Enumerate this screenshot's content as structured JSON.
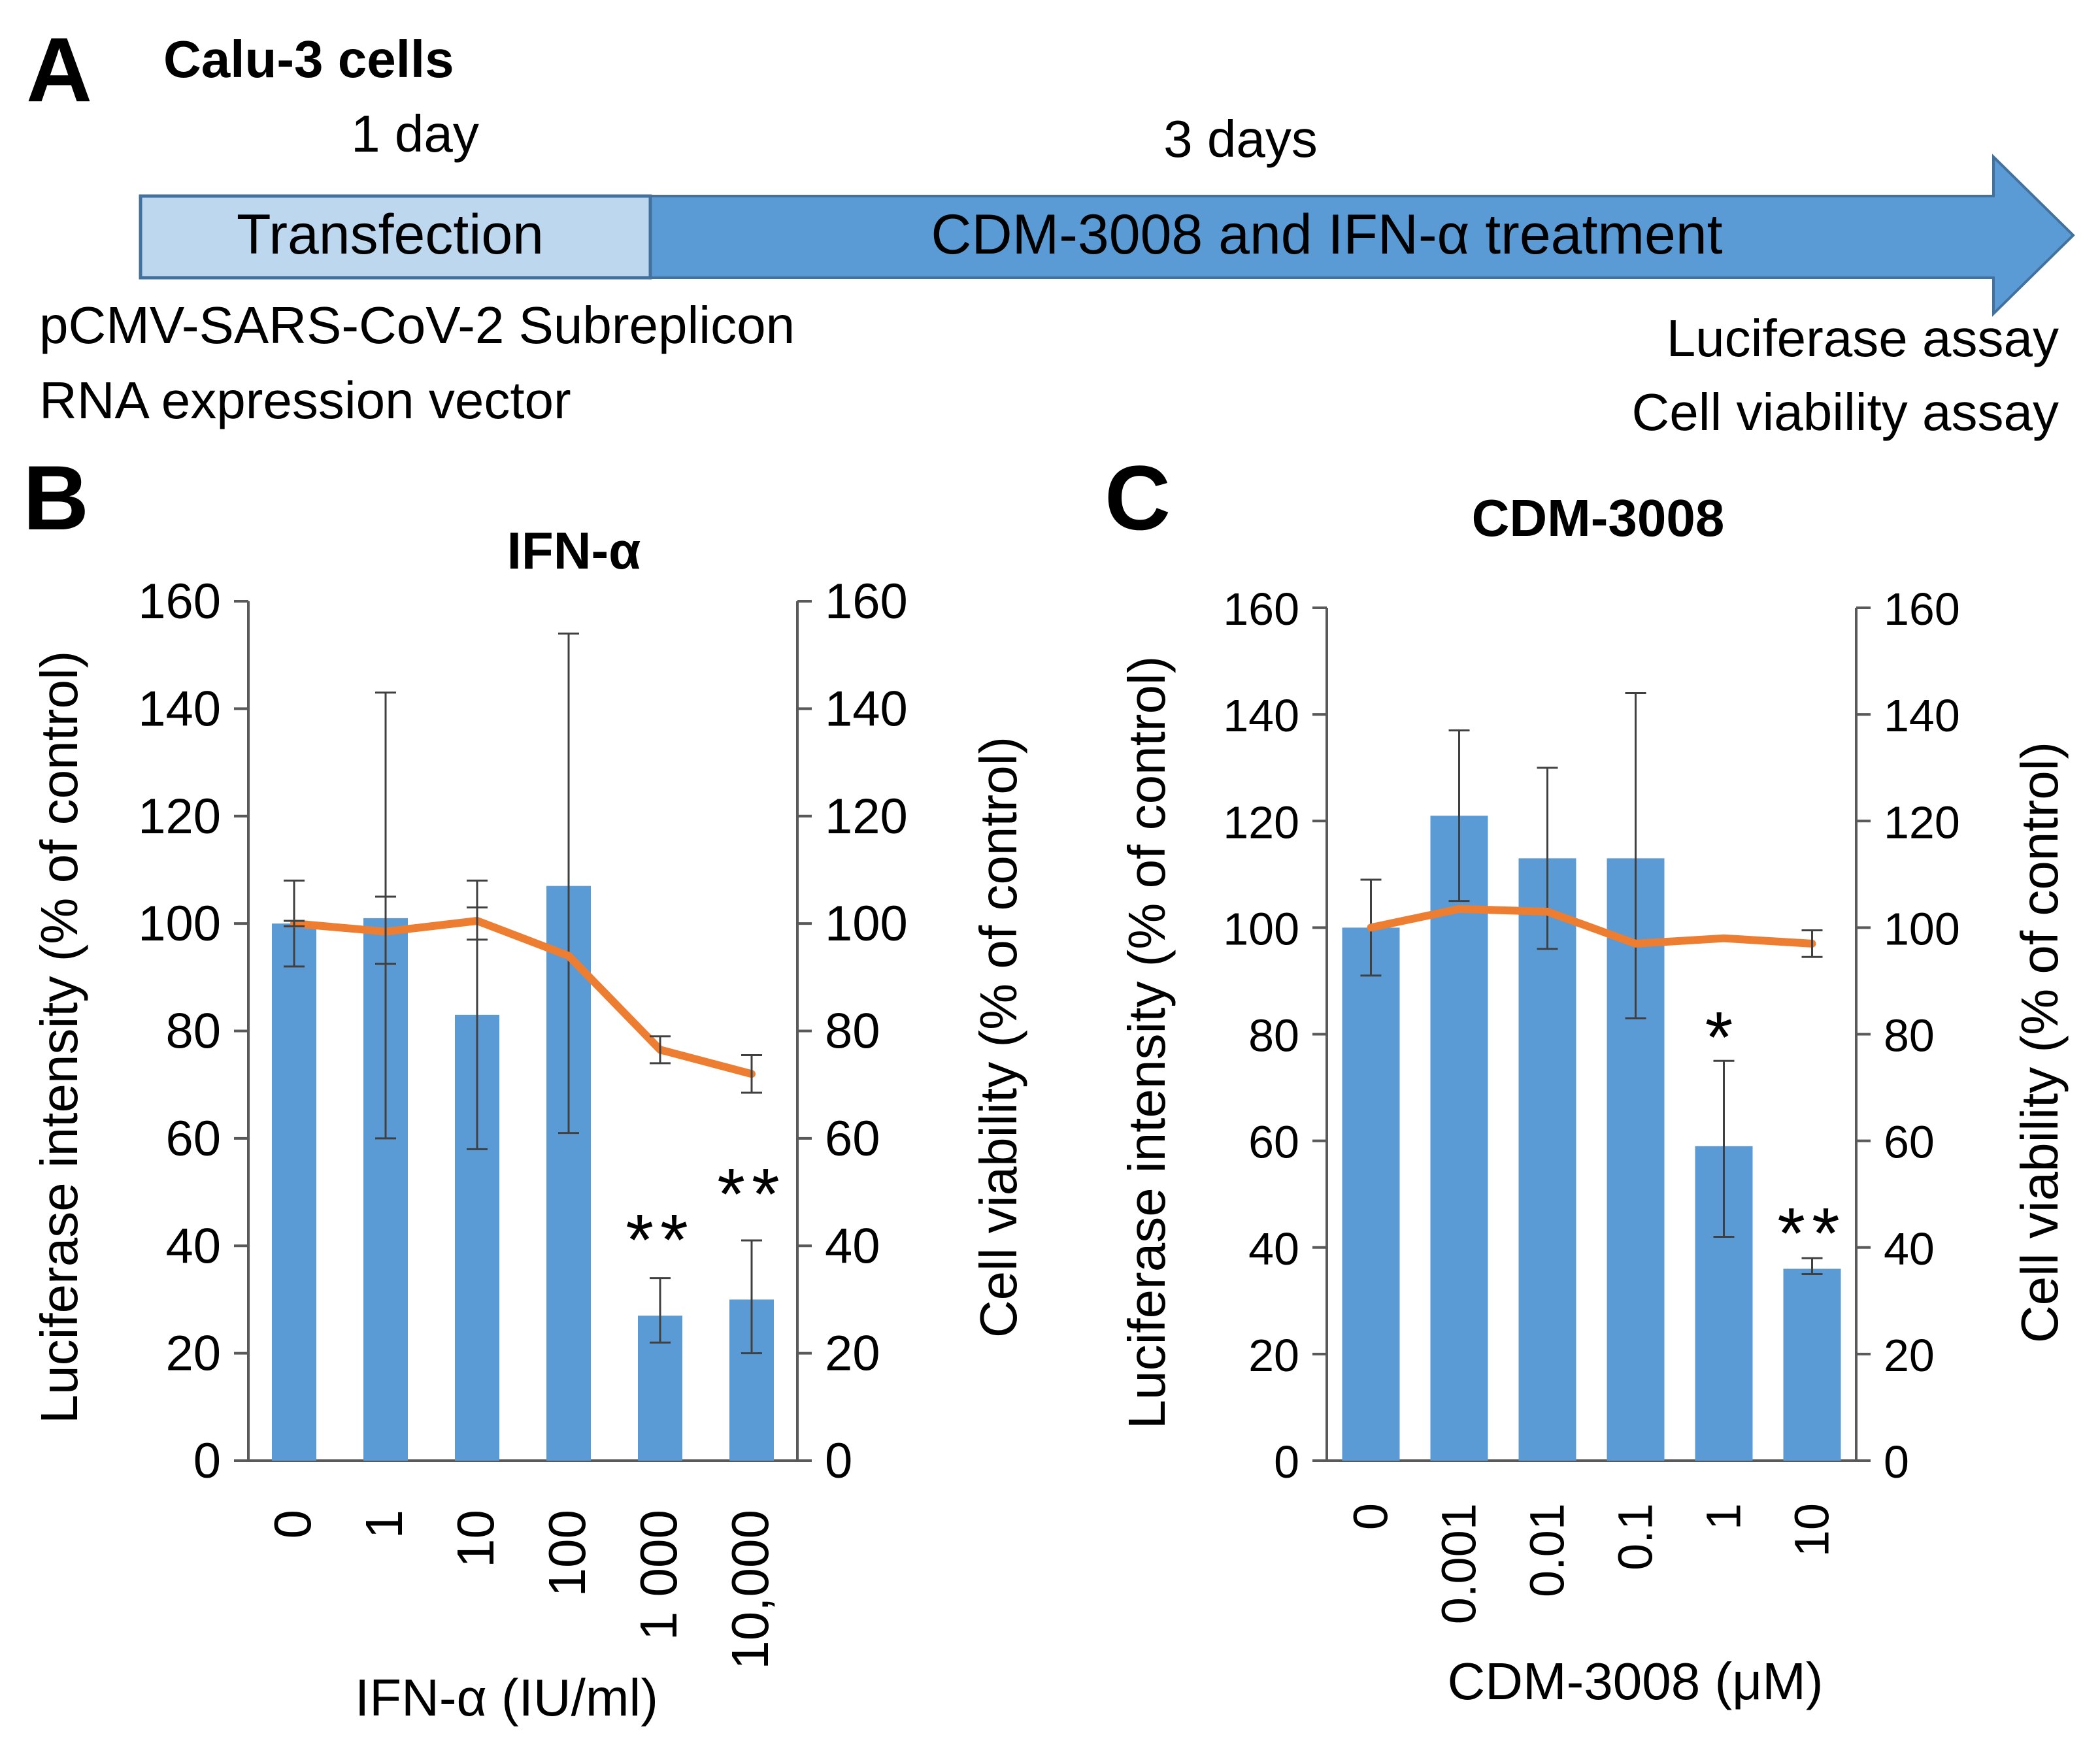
{
  "panel_a": {
    "label": "A",
    "title": "Calu-3 cells",
    "phase1_duration": "1 day",
    "phase2_duration": "3 days",
    "phase1_label": "Transfection",
    "phase2_label": "CDM-3008 and IFN-α treatment",
    "vector_line1": "pCMV-SARS-CoV-2 Subreplicon",
    "vector_line2": "RNA expression vector",
    "assay_line1": "Luciferase assay",
    "assay_line2": "Cell viability assay",
    "colors": {
      "light_box": "#bdd7ee",
      "arrow": "#5b9bd5",
      "border": "#41719c"
    }
  },
  "chart_data": [
    {
      "panel": "B",
      "type": "bar",
      "title": "IFN-α",
      "xlabel": "IFN-α (IU/ml)",
      "ylabel_left": "Luciferase intensity  (% of control)",
      "ylabel_right": "Cell viability  (% of control)",
      "ylim": [
        0,
        160
      ],
      "yticks": [
        "0",
        "20",
        "40",
        "60",
        "80",
        "100",
        "120",
        "140",
        "160"
      ],
      "categories": [
        "0",
        "1",
        "10",
        "100",
        "1 000",
        "10,000"
      ],
      "series": [
        {
          "name": "Luciferase intensity",
          "kind": "bar",
          "color": "#5b9bd5",
          "values": [
            100,
            101,
            83,
            107,
            27,
            30
          ],
          "err_low": [
            92,
            60,
            58,
            61,
            22,
            20
          ],
          "err_high": [
            108,
            143,
            108,
            154,
            34,
            41
          ]
        },
        {
          "name": "Cell viability",
          "kind": "line",
          "color": "#ed7d31",
          "values": [
            100,
            98.5,
            100.5,
            94,
            76.5,
            72
          ],
          "err_low": [
            99.5,
            92.5,
            97,
            94,
            74,
            68.5
          ],
          "err_high": [
            100.5,
            105,
            103,
            94,
            79,
            75.5
          ]
        }
      ],
      "annotations": [
        "",
        "",
        "",
        "",
        "**",
        "**"
      ]
    },
    {
      "panel": "C",
      "type": "bar",
      "title": "CDM-3008",
      "xlabel": "CDM-3008 (μM)",
      "ylabel_left": "Luciferase intensity  (% of control)",
      "ylabel_right": "Cell viability  (% of control)",
      "ylim": [
        0,
        160
      ],
      "yticks": [
        "0",
        "20",
        "40",
        "60",
        "80",
        "100",
        "120",
        "140",
        "160"
      ],
      "categories": [
        "0",
        "0.001",
        "0.01",
        "0.1",
        "1",
        "10"
      ],
      "series": [
        {
          "name": "Luciferase intensity",
          "kind": "bar",
          "color": "#5b9bd5",
          "values": [
            100,
            121,
            113,
            113,
            59,
            36
          ],
          "err_low": [
            91,
            105,
            96,
            83,
            42,
            35
          ],
          "err_high": [
            109,
            137,
            130,
            144,
            75,
            38
          ]
        },
        {
          "name": "Cell viability",
          "kind": "line",
          "color": "#ed7d31",
          "values": [
            100,
            103.5,
            103,
            97,
            98,
            97
          ],
          "err_low": [
            100,
            103.5,
            103,
            97,
            98,
            94.5
          ],
          "err_high": [
            100,
            103.5,
            103,
            97,
            98,
            99.5
          ]
        }
      ],
      "annotations": [
        "",
        "",
        "",
        "",
        "*",
        "**"
      ]
    }
  ]
}
